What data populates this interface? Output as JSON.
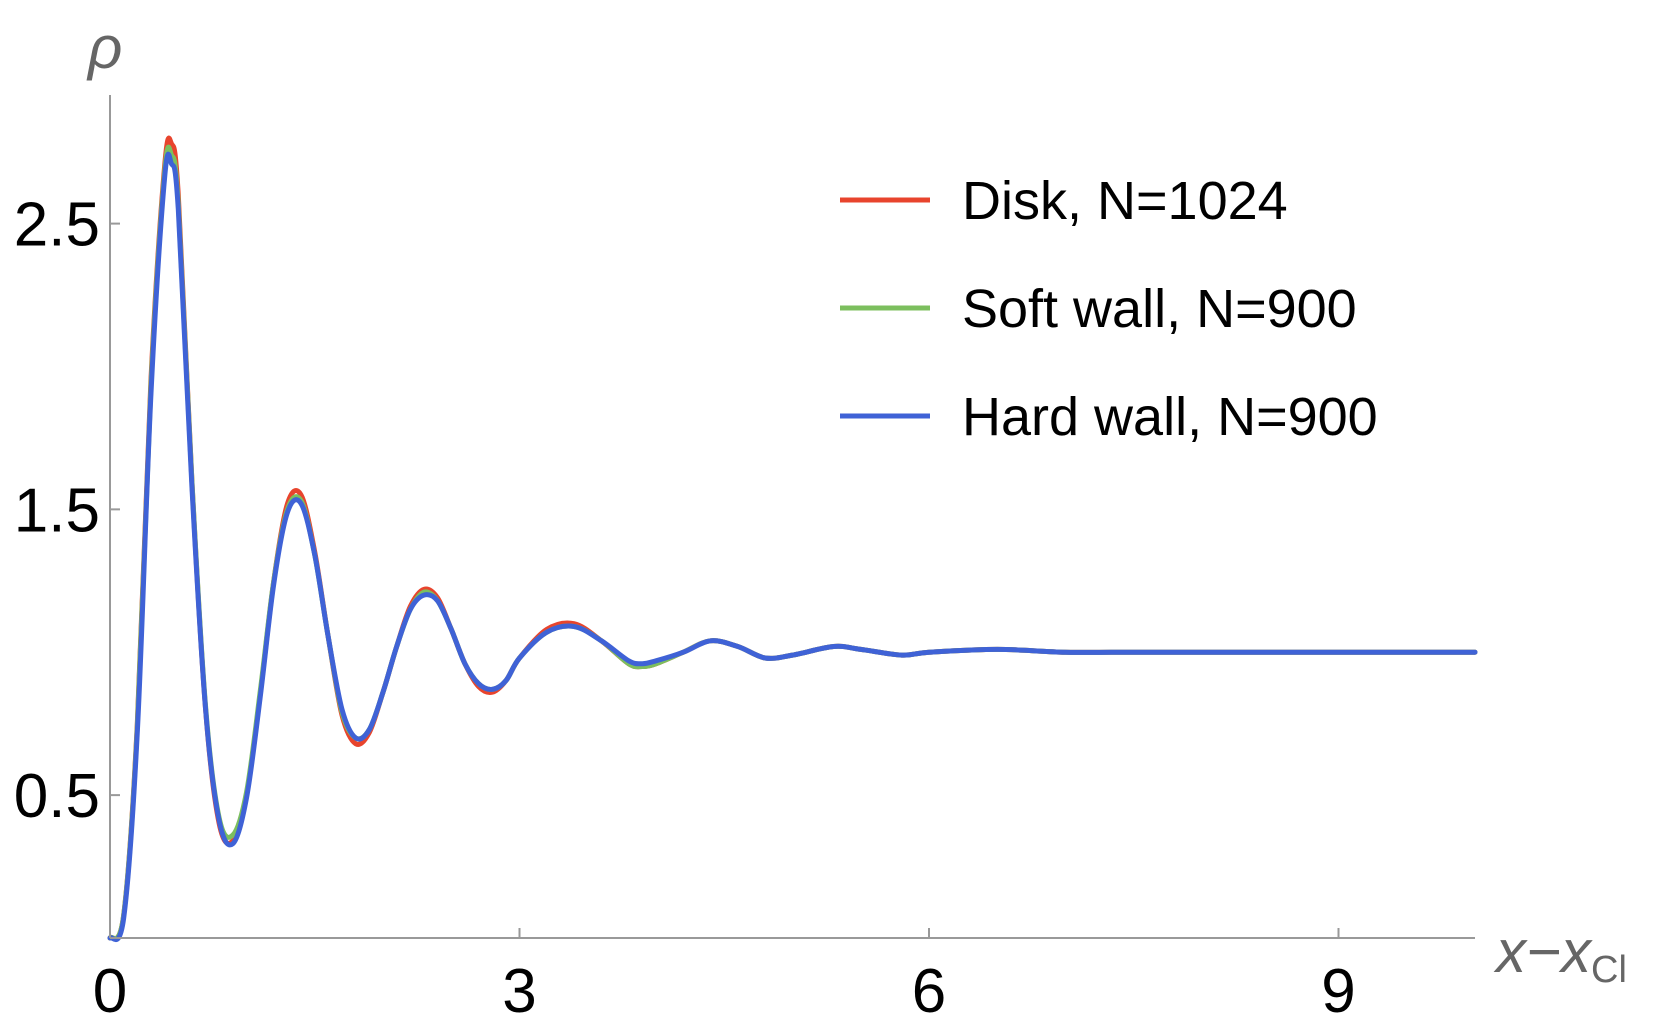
{
  "chart_data": {
    "type": "line",
    "title": "",
    "xlabel": "x−x",
    "xlabel_sub": "Cl",
    "ylabel": "ρ",
    "xlim": [
      0,
      10
    ],
    "ylim": [
      0,
      2.95
    ],
    "xticks": [
      0,
      3,
      6,
      9
    ],
    "xtick_labels": [
      "0",
      "3",
      "6",
      "9"
    ],
    "yticks": [
      0.5,
      1.5,
      2.5
    ],
    "ytick_labels": [
      "0.5",
      "1.5",
      "2.5"
    ],
    "grid": false,
    "legend_position": "top-right",
    "series": [
      {
        "name": "Disk, N=1024",
        "color": "#e8442d",
        "x": [
          0,
          0.1,
          0.2,
          0.3,
          0.4,
          0.45,
          0.5,
          0.6,
          0.7,
          0.8,
          0.9,
          1.0,
          1.1,
          1.2,
          1.3,
          1.4,
          1.5,
          1.6,
          1.7,
          1.8,
          1.9,
          2.0,
          2.1,
          2.2,
          2.3,
          2.4,
          2.5,
          2.6,
          2.7,
          2.8,
          2.9,
          3.0,
          3.2,
          3.4,
          3.6,
          3.8,
          3.9,
          4.0,
          4.2,
          4.4,
          4.6,
          4.8,
          5.0,
          5.3,
          5.5,
          5.8,
          6.0,
          6.5,
          7.0,
          7.5,
          8.0,
          8.5,
          9.0,
          9.5,
          10.0
        ],
        "y": [
          0.0,
          0.08,
          0.75,
          1.95,
          2.7,
          2.78,
          2.6,
          1.6,
          0.8,
          0.4,
          0.34,
          0.5,
          0.85,
          1.25,
          1.52,
          1.55,
          1.35,
          1.05,
          0.78,
          0.68,
          0.72,
          0.86,
          1.02,
          1.16,
          1.22,
          1.19,
          1.08,
          0.96,
          0.88,
          0.86,
          0.9,
          0.98,
          1.08,
          1.1,
          1.04,
          0.96,
          0.95,
          0.96,
          1.0,
          1.04,
          1.02,
          0.98,
          0.99,
          1.02,
          1.01,
          0.99,
          1.0,
          1.01,
          1.0,
          1.0,
          1.0,
          1.0,
          1.0,
          1.0,
          1.0
        ]
      },
      {
        "name": "Soft wall, N=900",
        "color": "#7cbf5e",
        "x": [
          0,
          0.1,
          0.2,
          0.3,
          0.4,
          0.45,
          0.5,
          0.6,
          0.7,
          0.8,
          0.9,
          1.0,
          1.1,
          1.2,
          1.3,
          1.4,
          1.5,
          1.6,
          1.7,
          1.8,
          1.9,
          2.0,
          2.1,
          2.2,
          2.3,
          2.4,
          2.5,
          2.6,
          2.7,
          2.8,
          2.9,
          3.0,
          3.2,
          3.4,
          3.6,
          3.8,
          3.9,
          4.0,
          4.2,
          4.4,
          4.6,
          4.8,
          5.0,
          5.3,
          5.5,
          5.8,
          6.0,
          6.5,
          7.0,
          7.5,
          8.0,
          8.5,
          9.0,
          9.5,
          10.0
        ],
        "y": [
          0.0,
          0.08,
          0.74,
          1.93,
          2.68,
          2.74,
          2.57,
          1.6,
          0.81,
          0.42,
          0.36,
          0.51,
          0.86,
          1.25,
          1.5,
          1.53,
          1.34,
          1.05,
          0.79,
          0.7,
          0.73,
          0.86,
          1.02,
          1.15,
          1.21,
          1.18,
          1.08,
          0.96,
          0.89,
          0.87,
          0.9,
          0.98,
          1.07,
          1.09,
          1.04,
          0.96,
          0.95,
          0.96,
          1.0,
          1.04,
          1.02,
          0.98,
          0.99,
          1.02,
          1.01,
          0.99,
          1.0,
          1.01,
          1.0,
          1.0,
          1.0,
          1.0,
          1.0,
          1.0,
          1.0
        ]
      },
      {
        "name": "Hard wall, N=900",
        "color": "#3f62d6",
        "x": [
          0,
          0.1,
          0.2,
          0.3,
          0.4,
          0.45,
          0.5,
          0.6,
          0.7,
          0.8,
          0.9,
          1.0,
          1.1,
          1.2,
          1.3,
          1.4,
          1.5,
          1.6,
          1.7,
          1.8,
          1.9,
          2.0,
          2.1,
          2.2,
          2.3,
          2.4,
          2.5,
          2.6,
          2.7,
          2.8,
          2.9,
          3.0,
          3.2,
          3.4,
          3.6,
          3.8,
          3.9,
          4.0,
          4.2,
          4.4,
          4.6,
          4.8,
          5.0,
          5.3,
          5.5,
          5.8,
          6.0,
          6.5,
          7.0,
          7.5,
          8.0,
          8.5,
          9.0,
          9.5,
          10.0
        ],
        "y": [
          0.0,
          0.07,
          0.72,
          1.9,
          2.66,
          2.71,
          2.55,
          1.58,
          0.8,
          0.41,
          0.33,
          0.49,
          0.84,
          1.24,
          1.49,
          1.52,
          1.34,
          1.05,
          0.8,
          0.7,
          0.73,
          0.86,
          1.02,
          1.15,
          1.2,
          1.18,
          1.08,
          0.96,
          0.89,
          0.87,
          0.9,
          0.98,
          1.07,
          1.09,
          1.04,
          0.97,
          0.96,
          0.97,
          1.0,
          1.04,
          1.02,
          0.98,
          0.99,
          1.02,
          1.01,
          0.99,
          1.0,
          1.01,
          1.0,
          1.0,
          1.0,
          1.0,
          1.0,
          1.0,
          1.0
        ]
      }
    ]
  }
}
